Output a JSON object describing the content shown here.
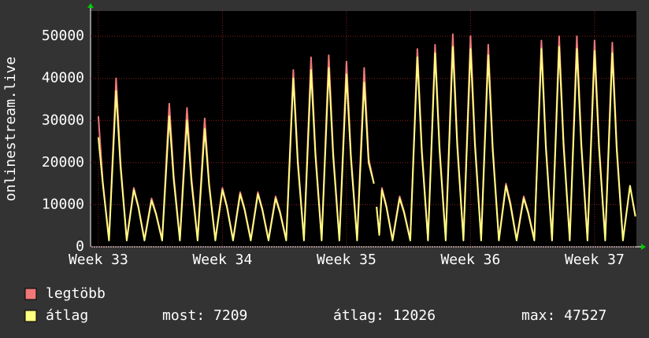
{
  "chart_data": {
    "type": "line",
    "ylabel": "onlinestream.live",
    "x": [
      0,
      0.25,
      0.6,
      1,
      1.25,
      1.6,
      2,
      2.25,
      2.6,
      3,
      3.25,
      3.6,
      4,
      4.25,
      4.6,
      5,
      5.25,
      5.6,
      6,
      6.25,
      6.6,
      7,
      7.25,
      7.6,
      8,
      8.25,
      8.6,
      9,
      9.25,
      9.6,
      10,
      10.25,
      10.6,
      11,
      11.25,
      11.6,
      12,
      12.25,
      12.6,
      13,
      13.25,
      13.6,
      14,
      14.25,
      14.6,
      15,
      15.25,
      15.55,
      15.62,
      15.7,
      15.85,
      16,
      16.25,
      16.6,
      17,
      17.25,
      17.6,
      18,
      18.25,
      18.6,
      19,
      19.25,
      19.6,
      20,
      20.25,
      20.6,
      21,
      21.25,
      21.6,
      22,
      22.25,
      22.6,
      23,
      23.25,
      23.6,
      24,
      24.25,
      24.6,
      25,
      25.25,
      25.6,
      26,
      26.25,
      26.6,
      27,
      27.25,
      27.6,
      28,
      28.25,
      28.6,
      29,
      29.25,
      29.6,
      30,
      30.3
    ],
    "series": [
      {
        "name": "legtöbb",
        "color": "#f07878",
        "values": [
          31000,
          15500,
          1800,
          40000,
          20000,
          1800,
          14000,
          9800,
          1800,
          11500,
          8000,
          1800,
          34000,
          17000,
          1800,
          33000,
          16500,
          1800,
          30500,
          15000,
          1800,
          14000,
          9800,
          1800,
          13000,
          9100,
          1800,
          13000,
          9100,
          1800,
          12000,
          8400,
          1800,
          42000,
          21000,
          1800,
          45000,
          22500,
          1800,
          45500,
          22500,
          1800,
          44000,
          22000,
          1800,
          42500,
          21000,
          15000,
          null,
          9500,
          3000,
          14000,
          9800,
          1800,
          12000,
          8400,
          1800,
          47000,
          23500,
          1800,
          48000,
          24000,
          1800,
          50500,
          25000,
          1800,
          50000,
          25000,
          1800,
          48000,
          24000,
          1800,
          15000,
          10500,
          1800,
          12000,
          8400,
          1800,
          49000,
          24500,
          1800,
          50000,
          25000,
          1800,
          50000,
          25000,
          1800,
          49000,
          24500,
          1800,
          48500,
          24000,
          1800,
          14500,
          7400
        ]
      },
      {
        "name": "átlag",
        "color": "#ffff80",
        "values": [
          26000,
          15000,
          1500,
          37000,
          19000,
          1500,
          13500,
          9500,
          1500,
          11000,
          7800,
          1500,
          31000,
          16000,
          1500,
          30000,
          15500,
          1500,
          28000,
          14500,
          1500,
          13500,
          9500,
          1500,
          12500,
          8800,
          1500,
          12500,
          8800,
          1500,
          11500,
          8100,
          1500,
          40000,
          20000,
          1500,
          42000,
          21500,
          1500,
          42500,
          21500,
          1500,
          41000,
          21000,
          1500,
          39000,
          20000,
          15000,
          null,
          9500,
          2800,
          13500,
          9500,
          1500,
          11500,
          8100,
          1500,
          45000,
          22500,
          1500,
          46000,
          23000,
          1500,
          47500,
          24000,
          1500,
          47000,
          24000,
          1500,
          45500,
          23000,
          1500,
          14500,
          10000,
          1500,
          11500,
          8100,
          1500,
          47000,
          23500,
          1500,
          47500,
          24000,
          1500,
          47000,
          24000,
          1500,
          46500,
          23500,
          1500,
          46000,
          23000,
          1500,
          14500,
          7209
        ]
      }
    ],
    "xlim": [
      -0.44,
      30.36
    ],
    "xticks": [
      {
        "value": 0,
        "label": "Week 33"
      },
      {
        "value": 7,
        "label": "Week 34"
      },
      {
        "value": 14,
        "label": "Week 35"
      },
      {
        "value": 21,
        "label": "Week 36"
      },
      {
        "value": 28,
        "label": "Week 37"
      }
    ],
    "ylim": [
      0,
      56000
    ],
    "yticks": [
      0,
      10000,
      20000,
      30000,
      40000,
      50000
    ],
    "grid": true,
    "stats": [
      "most: 7209",
      "átlag: 12026",
      "max: 47527"
    ]
  }
}
